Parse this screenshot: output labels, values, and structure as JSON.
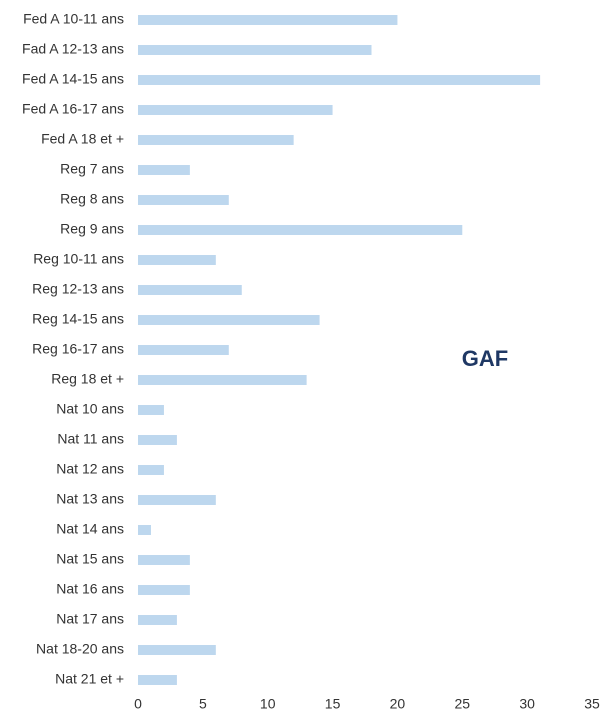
{
  "chart_data": {
    "type": "bar",
    "orientation": "horizontal",
    "annotation": "GAF",
    "categories": [
      "Fed A 10-11 ans",
      "Fad A 12-13 ans",
      "Fed A 14-15 ans",
      "Fed A 16-17 ans",
      "Fed A 18 et +",
      "Reg 7 ans",
      "Reg 8 ans",
      "Reg 9 ans",
      "Reg 10-11 ans",
      "Reg 12-13 ans",
      "Reg 14-15 ans",
      "Reg 16-17 ans",
      "Reg 18 et +",
      "Nat 10 ans",
      "Nat 11 ans",
      "Nat 12 ans",
      "Nat 13 ans",
      "Nat 14 ans",
      "Nat 15 ans",
      "Nat 16 ans",
      "Nat 17 ans",
      "Nat 18-20 ans",
      "Nat 21 et +"
    ],
    "values": [
      20,
      18,
      31,
      15,
      12,
      4,
      7,
      25,
      6,
      8,
      14,
      7,
      13,
      2,
      3,
      2,
      6,
      1,
      4,
      4,
      3,
      6,
      3
    ],
    "color": "#bdd7ee",
    "xlim": [
      0,
      35
    ],
    "xticks": [
      0,
      5,
      10,
      15,
      20,
      25,
      30,
      35
    ],
    "grid": false
  }
}
